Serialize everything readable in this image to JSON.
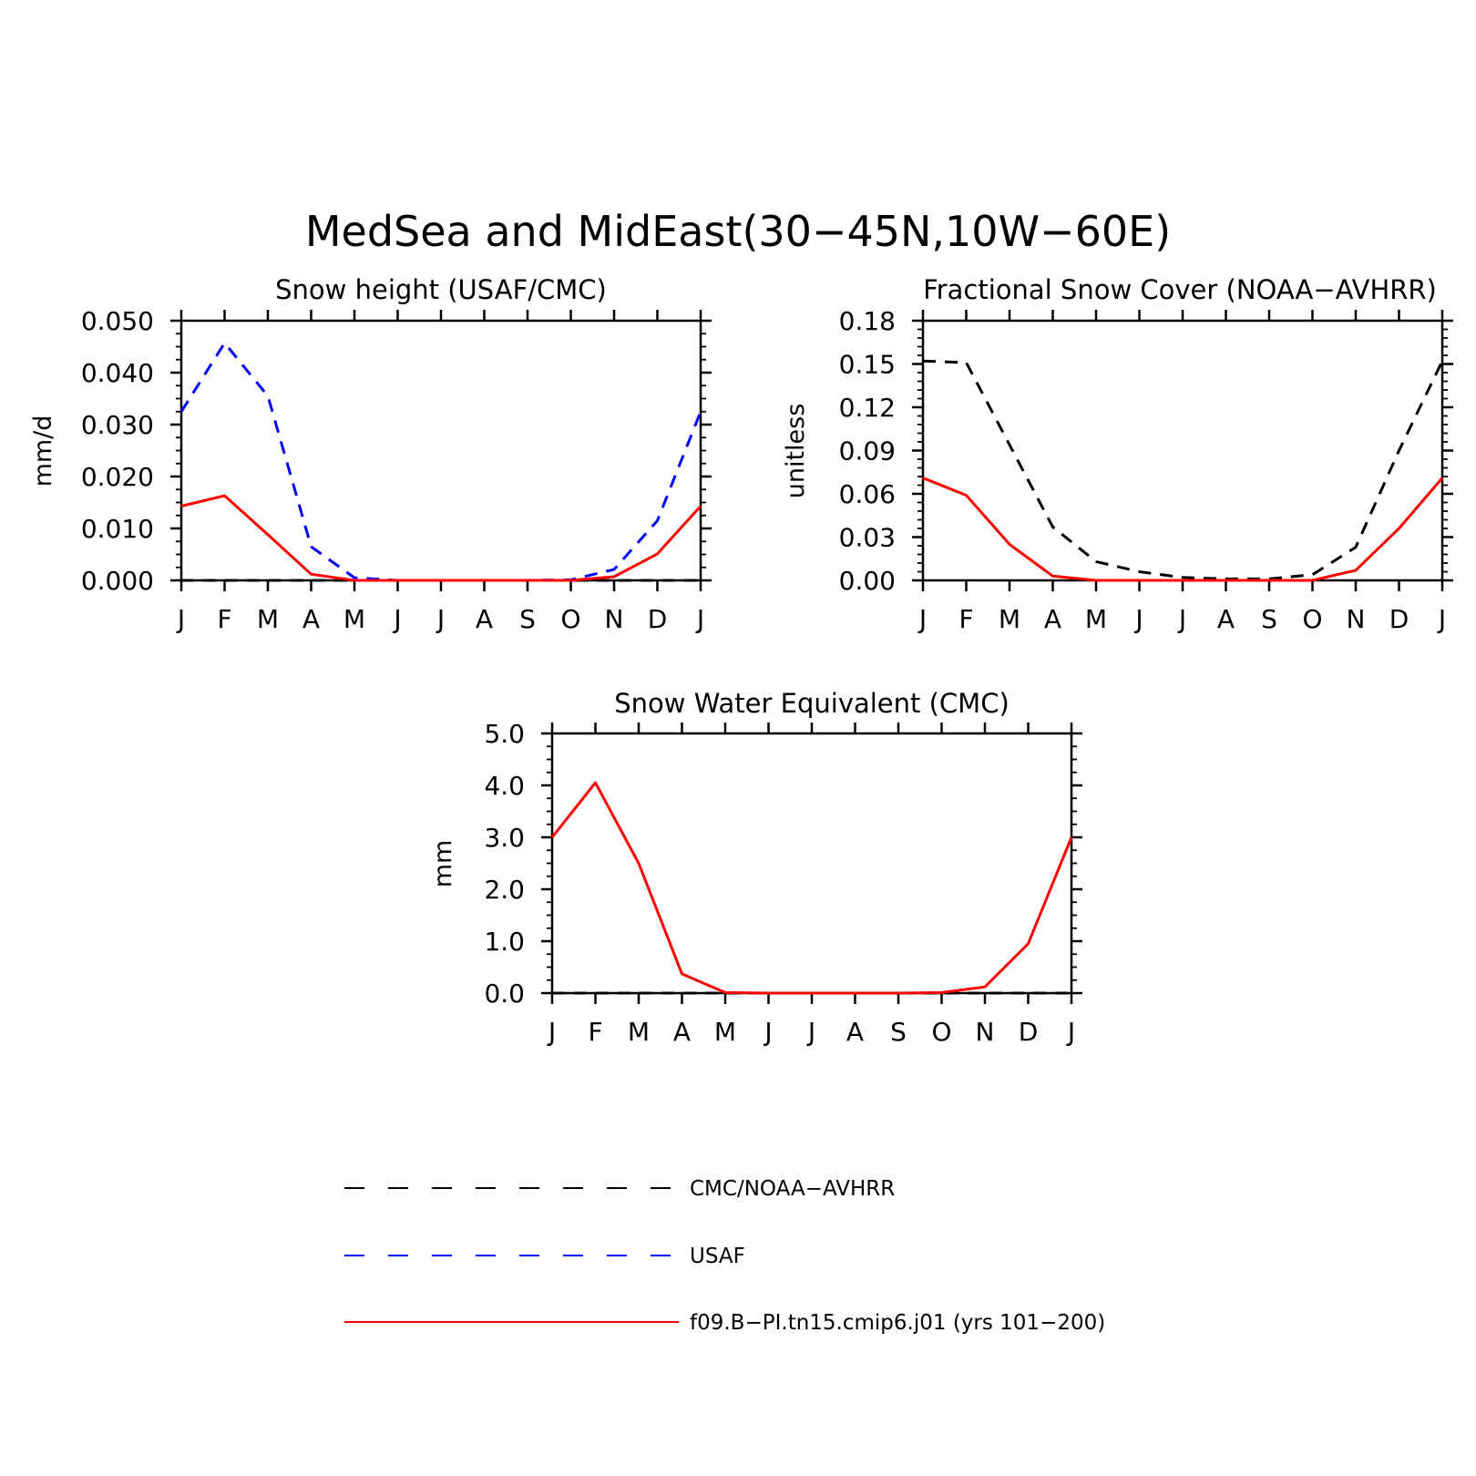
{
  "main_title": "MedSea and MidEast(30−45N,10W−60E)",
  "colors": {
    "obs": "#000000",
    "usaf": "#0000ff",
    "model": "#ff0000"
  },
  "legend": [
    {
      "label": "CMC/NOAA−AVHRR",
      "color": "#000000",
      "dash": true
    },
    {
      "label": "USAF",
      "color": "#0000ff",
      "dash": true
    },
    {
      "label": "f09.B−PI.tn15.cmip6.j01 (yrs 101−200)",
      "color": "#ff0000",
      "dash": false
    }
  ],
  "chart_data": [
    {
      "type": "line",
      "title": "Snow height (USAF/CMC)",
      "xlabel": "",
      "ylabel": "mm/d",
      "categories": [
        "J",
        "F",
        "M",
        "A",
        "M",
        "J",
        "J",
        "A",
        "S",
        "O",
        "N",
        "D",
        "J"
      ],
      "ylim": [
        0,
        0.05
      ],
      "yticks": [
        "0.000",
        "0.010",
        "0.020",
        "0.030",
        "0.040",
        "0.050"
      ],
      "series": [
        {
          "name": "CMC/NOAA−AVHRR",
          "color": "#000000",
          "dash": true,
          "values": [
            0,
            0,
            0,
            0,
            0,
            0,
            0,
            0,
            0,
            0,
            0,
            0,
            0
          ]
        },
        {
          "name": "USAF",
          "color": "#0000ff",
          "dash": true,
          "values": [
            0.0325,
            0.0457,
            0.0355,
            0.0065,
            0.0005,
            0,
            0,
            0,
            0,
            0.0001,
            0.0021,
            0.0115,
            0.0325
          ]
        },
        {
          "name": "f09.B−PI.tn15.cmip6.j01 (yrs 101−200)",
          "color": "#ff0000",
          "dash": false,
          "values": [
            0.0143,
            0.0163,
            0.0088,
            0.0012,
            0,
            0,
            0,
            0,
            0,
            0,
            0.0007,
            0.0051,
            0.0143
          ]
        }
      ]
    },
    {
      "type": "line",
      "title": "Fractional Snow Cover (NOAA−AVHRR)",
      "xlabel": "",
      "ylabel": "unitless",
      "categories": [
        "J",
        "F",
        "M",
        "A",
        "M",
        "J",
        "J",
        "A",
        "S",
        "O",
        "N",
        "D",
        "J"
      ],
      "ylim": [
        0,
        0.18
      ],
      "yticks": [
        "0.00",
        "0.03",
        "0.06",
        "0.09",
        "0.12",
        "0.15",
        "0.18"
      ],
      "series": [
        {
          "name": "CMC/NOAA−AVHRR",
          "color": "#000000",
          "dash": true,
          "values": [
            0.152,
            0.151,
            0.094,
            0.037,
            0.013,
            0.006,
            0.002,
            0.001,
            0.001,
            0.004,
            0.023,
            0.09,
            0.152
          ]
        },
        {
          "name": "f09.B−PI.tn15.cmip6.j01 (yrs 101−200)",
          "color": "#ff0000",
          "dash": false,
          "values": [
            0.071,
            0.059,
            0.025,
            0.003,
            0,
            0,
            0,
            0,
            0,
            0,
            0.007,
            0.036,
            0.071
          ]
        }
      ]
    },
    {
      "type": "line",
      "title": "Snow Water Equivalent (CMC)",
      "xlabel": "",
      "ylabel": "mm",
      "categories": [
        "J",
        "F",
        "M",
        "A",
        "M",
        "J",
        "J",
        "A",
        "S",
        "O",
        "N",
        "D",
        "J"
      ],
      "ylim": [
        0,
        5.0
      ],
      "yticks": [
        "0.0",
        "1.0",
        "2.0",
        "3.0",
        "4.0",
        "5.0"
      ],
      "series": [
        {
          "name": "CMC/NOAA−AVHRR",
          "color": "#000000",
          "dash": true,
          "values": [
            0,
            0,
            0,
            0,
            0,
            0,
            0,
            0,
            0,
            0,
            0,
            0,
            0
          ]
        },
        {
          "name": "f09.B−PI.tn15.cmip6.j01 (yrs 101−200)",
          "color": "#ff0000",
          "dash": false,
          "values": [
            3.0,
            4.05,
            2.5,
            0.37,
            0.01,
            0,
            0,
            0,
            0,
            0.01,
            0.12,
            0.95,
            3.0
          ]
        }
      ]
    }
  ]
}
